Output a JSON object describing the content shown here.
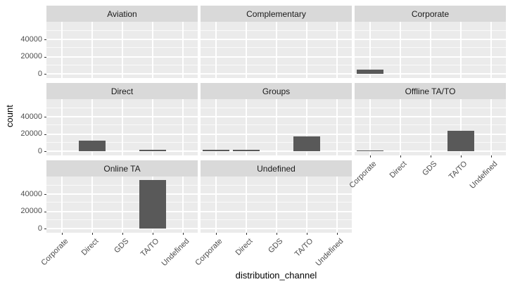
{
  "chart_data": {
    "type": "bar",
    "title": "",
    "xlabel": "distribution_channel",
    "ylabel": "count",
    "categories": [
      "Corporate",
      "Direct",
      "GDS",
      "TA/TO",
      "Undefined"
    ],
    "y_ticks": [
      0,
      20000,
      40000
    ],
    "ylim": [
      0,
      59000
    ],
    "grid": true,
    "legend": "none",
    "facet_variable_values": [
      "Aviation",
      "Complementary",
      "Corporate",
      "Direct",
      "Groups",
      "Offline TA/TO",
      "Online TA",
      "Undefined"
    ],
    "facets": [
      {
        "label": "Aviation",
        "values": [
          0,
          0,
          0,
          0,
          0
        ]
      },
      {
        "label": "Complementary",
        "values": [
          0,
          0,
          0,
          0,
          0
        ]
      },
      {
        "label": "Corporate",
        "values": [
          4500,
          0,
          0,
          0,
          0
        ]
      },
      {
        "label": "Direct",
        "values": [
          0,
          12000,
          0,
          1500,
          0
        ]
      },
      {
        "label": "Groups",
        "values": [
          2000,
          2000,
          0,
          17000,
          0
        ]
      },
      {
        "label": "Offline TA/TO",
        "values": [
          1000,
          0,
          0,
          24000,
          0
        ]
      },
      {
        "label": "Online TA",
        "values": [
          0,
          0,
          0,
          56500,
          0
        ]
      },
      {
        "label": "Undefined",
        "values": [
          0,
          0,
          0,
          0,
          0
        ]
      }
    ],
    "colors": {
      "bar": "#595959",
      "panel_bg": "#EBEBEB",
      "strip_bg": "#D9D9D9",
      "grid": "#FFFFFF",
      "axis_text": "#4D4D4D",
      "title_text": "#000000"
    }
  }
}
